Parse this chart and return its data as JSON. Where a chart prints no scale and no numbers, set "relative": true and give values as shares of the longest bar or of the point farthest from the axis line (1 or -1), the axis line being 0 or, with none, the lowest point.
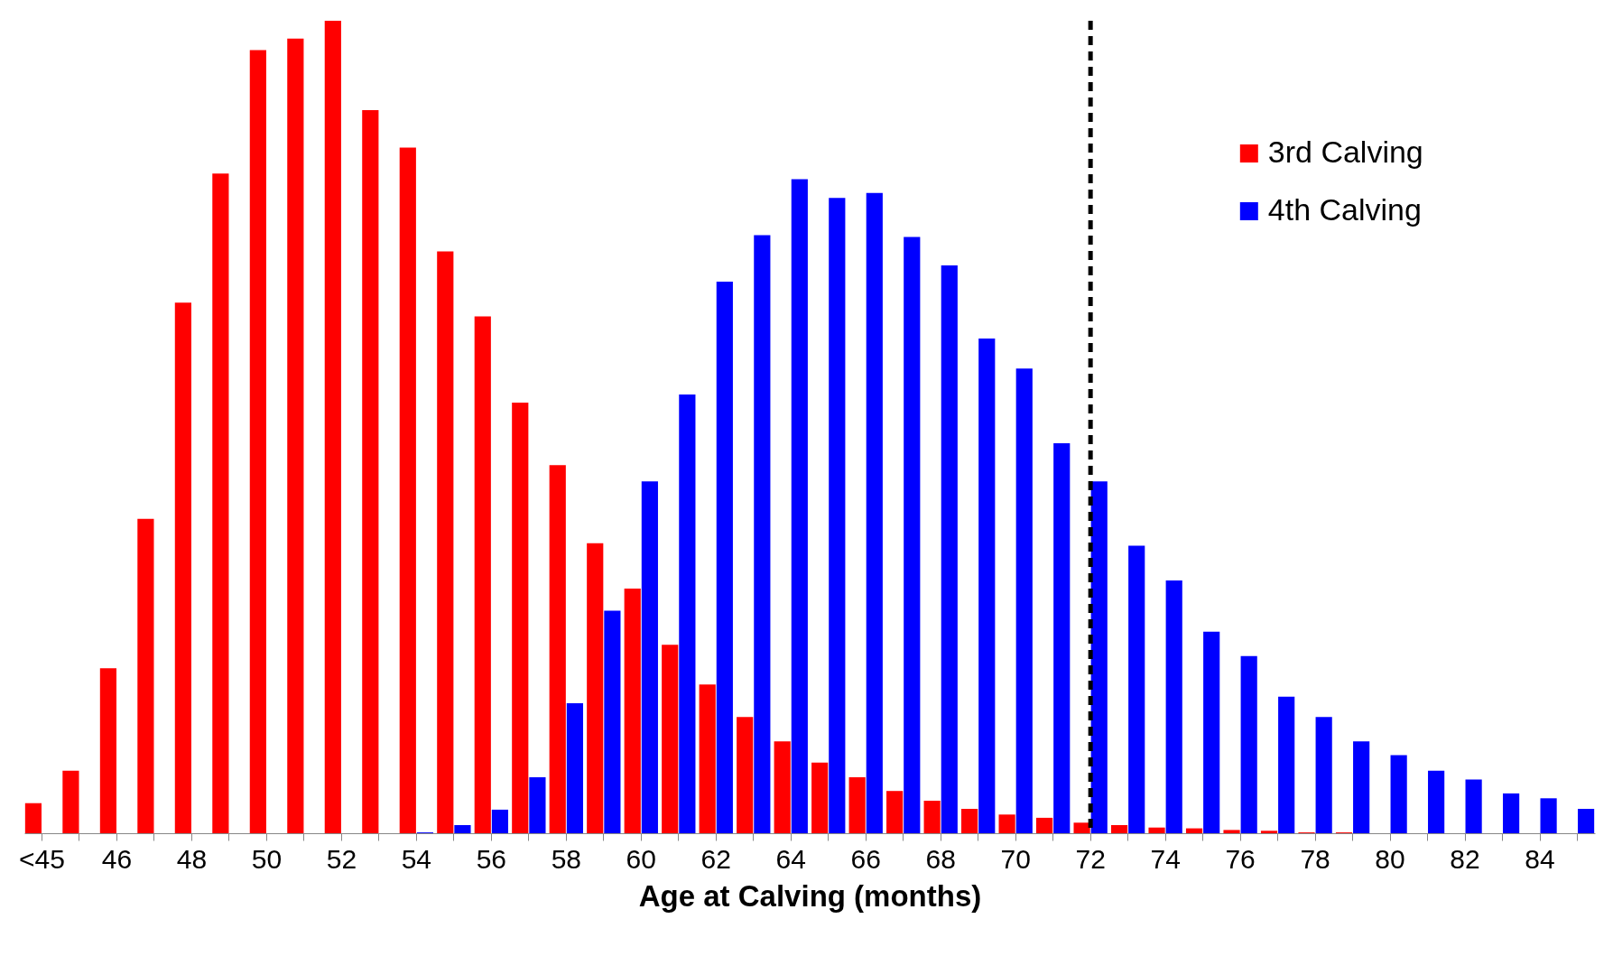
{
  "chart_data": {
    "type": "bar",
    "xlabel": "Age at Calving (months)",
    "relative": true,
    "legend": "top right",
    "categories": [
      "<45",
      null,
      "46",
      null,
      "48",
      null,
      "50",
      null,
      "52",
      null,
      "54",
      null,
      "56",
      null,
      "58",
      null,
      "60",
      null,
      "62",
      null,
      "64",
      null,
      "66",
      null,
      "68",
      null,
      "70",
      null,
      "72",
      null,
      "74",
      null,
      "76",
      null,
      "78",
      null,
      "80",
      null,
      "82",
      null,
      "84",
      null
    ],
    "series": [
      {
        "name": "3rd Calving",
        "color": "#ff0000",
        "values": [
          0.037,
          0.077,
          0.203,
          0.387,
          0.653,
          0.812,
          0.964,
          0.978,
          1,
          0.89,
          0.844,
          0.716,
          0.636,
          0.53,
          0.453,
          0.357,
          0.301,
          0.232,
          0.183,
          0.143,
          0.113,
          0.087,
          0.069,
          0.052,
          0.04,
          0.03,
          0.023,
          0.019,
          0.013,
          0.01,
          0.007,
          0.006,
          0.004,
          0.003,
          0.001,
          0.001,
          0,
          0,
          0,
          0,
          0,
          0
        ]
      },
      {
        "name": "4th Calving",
        "color": "#0000ff",
        "values": [
          0,
          0,
          0,
          0,
          0,
          0,
          0,
          0,
          0,
          0,
          0.001,
          0.01,
          0.029,
          0.069,
          0.16,
          0.274,
          0.433,
          0.54,
          0.679,
          0.736,
          0.805,
          0.782,
          0.788,
          0.734,
          0.699,
          0.609,
          0.572,
          0.48,
          0.433,
          0.354,
          0.311,
          0.248,
          0.218,
          0.168,
          0.143,
          0.113,
          0.096,
          0.077,
          0.066,
          0.049,
          0.043,
          0.03
        ]
      }
    ],
    "ref_lines": [
      {
        "axis": "x",
        "value": "72",
        "color": "#000000",
        "line_style": "dashed"
      }
    ]
  }
}
